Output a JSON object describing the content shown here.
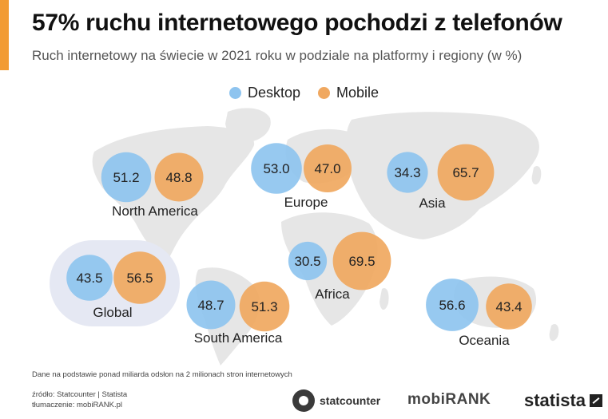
{
  "title": "57% ruchu internetowego pochodzi z telefonów",
  "subtitle": "Ruch internetowy na świecie w 2021 roku w podziale na platformy i regiony (w %)",
  "footnote": "Dane na podstawie ponad miliarda odsłon na 2 milionach stron internetowych",
  "source_line1": "źródło: Statcounter | Statista",
  "source_line2": "tłumaczenie: mobiRANK.pl",
  "logos": {
    "statcounter": "statcounter",
    "mobirank": "mobiRANK",
    "statista": "statista"
  },
  "colors": {
    "desktop": "#8ec4ef",
    "mobile": "#f0a860",
    "map": "#e6e6e6",
    "global_bg": "#e5e8f3"
  },
  "chart_data": {
    "type": "bubble",
    "legend": [
      "Desktop",
      "Mobile"
    ],
    "legend_position": "top-center",
    "regions": [
      {
        "name": "North America",
        "desktop": 51.2,
        "mobile": 48.8
      },
      {
        "name": "Europe",
        "desktop": 53.0,
        "mobile": 47.0
      },
      {
        "name": "Asia",
        "desktop": 34.3,
        "mobile": 65.7
      },
      {
        "name": "Africa",
        "desktop": 30.5,
        "mobile": 69.5
      },
      {
        "name": "Global",
        "desktop": 43.5,
        "mobile": 56.5
      },
      {
        "name": "South America",
        "desktop": 48.7,
        "mobile": 51.3
      },
      {
        "name": "Oceania",
        "desktop": 56.6,
        "mobile": 43.4
      }
    ]
  }
}
